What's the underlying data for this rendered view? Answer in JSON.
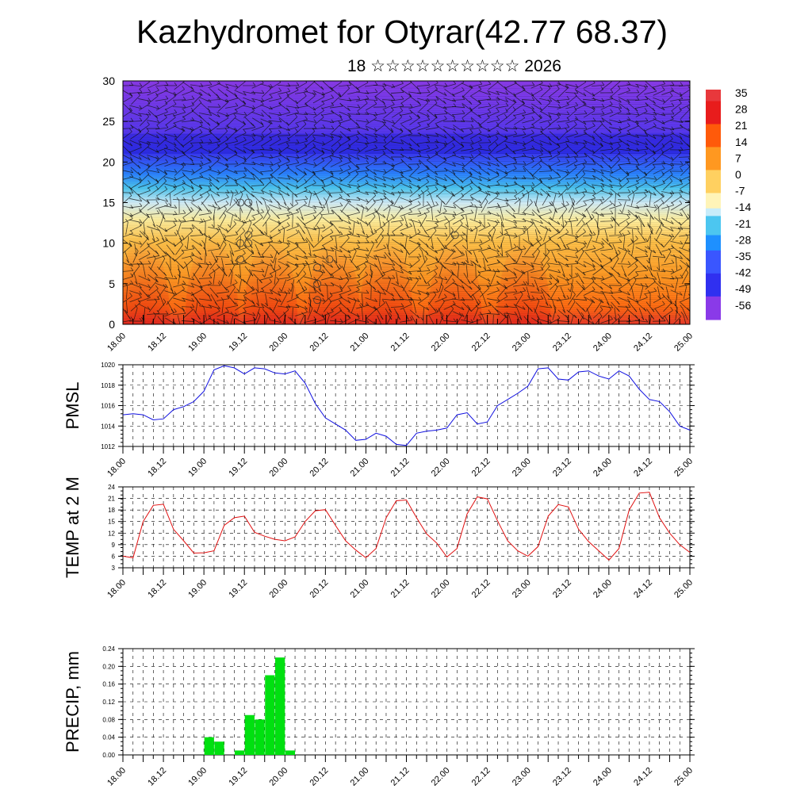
{
  "title": "Kazhydromet for Otyrar(42.77 68.37)",
  "subtitle": "18 ☆☆☆☆☆☆☆☆☆☆ 2026",
  "chart_data": [
    {
      "type": "heatmap",
      "name": "temperature-wind-cross-section",
      "ylim": [
        0,
        30
      ],
      "yticks": [
        "0",
        "5",
        "10",
        "15",
        "20",
        "25",
        "30"
      ],
      "xticks": [
        "18.00",
        "18.12",
        "19.00",
        "19.12",
        "20.00",
        "20.12",
        "21.00",
        "21.12",
        "22.00",
        "22.12",
        "23.00",
        "23.12",
        "24.00",
        "24.12",
        "25.00"
      ],
      "colorbar_labels": [
        "35",
        "28",
        "21",
        "14",
        "7",
        "0",
        "-7",
        "-14",
        "-21",
        "-28",
        "-35",
        "-42",
        "-49",
        "-56"
      ],
      "colorbar_colors": [
        "#f7bcbc",
        "#e8383c",
        "#ee2a1c",
        "#ff5a0a",
        "#ff8c1e",
        "#ffb24a",
        "#ffe68c",
        "#fff8cc",
        "#c8ecfa",
        "#4cc6f0",
        "#2090ff",
        "#3a56ff",
        "#3030ff",
        "#8a3ae8"
      ],
      "surface_warm_maxima_x": [
        0.5,
        2.2,
        3.65,
        5.2,
        6.5,
        8.2,
        9.9
      ]
    },
    {
      "type": "line",
      "name": "pmsl",
      "ylabel": "PMSL",
      "ylim": [
        1012,
        1020
      ],
      "yticks": [
        "1012",
        "1014",
        "1016",
        "1018",
        "1020"
      ],
      "color": "#1010e0",
      "xticks": [
        "18.00",
        "18.12",
        "19.00",
        "19.12",
        "20.00",
        "20.12",
        "21.00",
        "21.12",
        "22.00",
        "22.12",
        "23.00",
        "23.12",
        "24.00",
        "24.12",
        "25.00"
      ],
      "x": [
        0,
        0.25,
        0.5,
        0.75,
        1,
        1.25,
        1.5,
        1.75,
        2,
        2.25,
        2.5,
        2.75,
        3,
        3.25,
        3.5,
        3.75,
        4,
        4.25,
        4.5,
        4.75,
        5,
        5.25,
        5.5,
        5.75,
        6,
        6.25,
        6.5,
        6.75,
        7,
        7.25,
        7.5,
        7.75,
        8,
        8.25,
        8.5,
        8.75,
        9,
        9.25,
        9.5,
        9.75,
        10,
        10.25,
        10.5,
        10.75,
        11,
        11.25,
        11.5,
        11.75,
        12,
        12.25,
        12.5,
        12.75,
        13,
        13.25,
        13.5,
        13.75,
        14
      ],
      "values": [
        1015.1,
        1015.2,
        1015.1,
        1014.6,
        1014.7,
        1015.6,
        1015.9,
        1016.4,
        1017.4,
        1019.5,
        1019.9,
        1019.7,
        1019.1,
        1019.7,
        1019.6,
        1019.2,
        1019.1,
        1019.4,
        1018.2,
        1016.2,
        1014.8,
        1014.2,
        1013.6,
        1012.6,
        1012.7,
        1013.3,
        1013.0,
        1012.2,
        1012.1,
        1013.3,
        1013.5,
        1013.6,
        1013.8,
        1015.1,
        1015.3,
        1014.2,
        1014.4,
        1016.0,
        1016.6,
        1017.2,
        1017.9,
        1019.6,
        1019.7,
        1018.6,
        1018.5,
        1019.3,
        1019.4,
        1018.9,
        1018.6,
        1019.4,
        1018.9,
        1017.6,
        1016.6,
        1016.4,
        1015.4,
        1014.0,
        1013.6
      ]
    },
    {
      "type": "line",
      "name": "temp-2m",
      "ylabel": "TEMP at 2 M",
      "ylim": [
        3,
        24
      ],
      "yticks": [
        "3",
        "6",
        "9",
        "12",
        "15",
        "18",
        "21",
        "24"
      ],
      "color": "#e01010",
      "xticks": [
        "18.00",
        "18.12",
        "19.00",
        "19.12",
        "20.00",
        "20.12",
        "21.00",
        "21.12",
        "22.00",
        "22.12",
        "23.00",
        "23.12",
        "24.00",
        "24.12",
        "25.00"
      ],
      "x": [
        0,
        0.25,
        0.5,
        0.75,
        1,
        1.25,
        1.5,
        1.75,
        2,
        2.25,
        2.5,
        2.75,
        3,
        3.25,
        3.5,
        3.75,
        4,
        4.25,
        4.5,
        4.75,
        5,
        5.25,
        5.5,
        5.75,
        6,
        6.25,
        6.5,
        6.75,
        7,
        7.25,
        7.5,
        7.75,
        8,
        8.25,
        8.5,
        8.75,
        9,
        9.25,
        9.5,
        9.75,
        10,
        10.25,
        10.5,
        10.75,
        11,
        11.25,
        11.5,
        11.75,
        12,
        12.25,
        12.5,
        12.75,
        13,
        13.25,
        13.5,
        13.75,
        14
      ],
      "values": [
        6.0,
        5.6,
        15.0,
        19.2,
        19.5,
        13.0,
        10.0,
        6.8,
        6.9,
        7.4,
        14.0,
        16.0,
        16.4,
        12.2,
        11.2,
        10.4,
        10.0,
        11.0,
        15.0,
        17.8,
        18.1,
        14.0,
        10.0,
        7.6,
        5.6,
        8.0,
        16.0,
        20.4,
        20.6,
        16.0,
        11.8,
        9.4,
        5.8,
        8.0,
        17.0,
        21.4,
        20.9,
        15.2,
        10.0,
        7.4,
        6.0,
        8.5,
        16.4,
        19.4,
        18.8,
        13.0,
        9.8,
        7.4,
        5.0,
        8.0,
        18.0,
        22.4,
        22.6,
        16.0,
        12.0,
        9.0,
        7.0
      ]
    },
    {
      "type": "bar",
      "name": "precip",
      "ylabel": "PRECIP, mm",
      "ylim": [
        0,
        0.24
      ],
      "yticks": [
        "0.00",
        "0.04",
        "0.08",
        "0.12",
        "0.16",
        "0.20",
        "0.24"
      ],
      "color": "#00e010",
      "xticks": [
        "18.00",
        "18.12",
        "19.00",
        "19.12",
        "20.00",
        "20.12",
        "21.00",
        "21.12",
        "22.00",
        "22.12",
        "23.00",
        "23.12",
        "24.00",
        "24.12",
        "25.00"
      ],
      "x": [
        2.0,
        2.25,
        2.75,
        3.0,
        3.25,
        3.5,
        3.75,
        4.0
      ],
      "values": [
        0.04,
        0.03,
        0.01,
        0.09,
        0.08,
        0.18,
        0.22,
        0.01
      ]
    }
  ]
}
